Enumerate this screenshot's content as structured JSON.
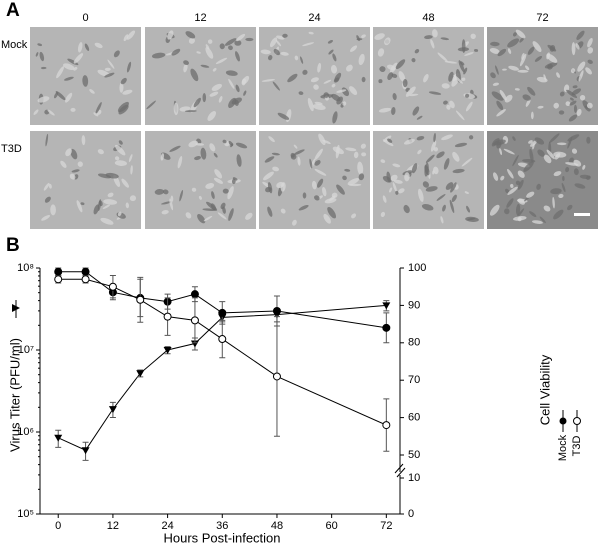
{
  "panel_a": {
    "label": "A",
    "columns": [
      0,
      12,
      24,
      48,
      72
    ],
    "rows": [
      "Mock",
      "T3D"
    ]
  },
  "chart_data": {
    "type": "line",
    "panel_label": "B",
    "x_label": "Hours Post-infection",
    "y_label": "Virus Titer (PFU/ml)",
    "y2_label": "Cell Viability",
    "x": [
      0,
      6,
      12,
      18,
      24,
      30,
      36,
      48,
      72
    ],
    "xlim": [
      -4,
      75
    ],
    "xticks": [
      0,
      12,
      24,
      36,
      48,
      60,
      72
    ],
    "ylim": [
      100000,
      100000000
    ],
    "log_y": true,
    "yticks": [
      {
        "value": 100000,
        "label": "10⁵"
      },
      {
        "value": 1000000,
        "label": "10⁶"
      },
      {
        "value": 10000000,
        "label": "10⁷"
      },
      {
        "value": 100000000,
        "label": "10⁸"
      }
    ],
    "y2lim": [
      0,
      100
    ],
    "y2ticks": [
      0,
      10,
      50,
      60,
      70,
      80,
      90,
      100
    ],
    "y2_break": [
      10,
      50
    ],
    "series": [
      {
        "marker": "triangle",
        "color": "#000000",
        "values": [
          850000,
          600000,
          1900000,
          5200000,
          10000000,
          12000000,
          25000000,
          27000000,
          35000000
        ],
        "errors": [
          200000,
          150000,
          400000,
          500000,
          1000000,
          2000000,
          3000000,
          5000000,
          5000000
        ]
      },
      {
        "name": "Mock",
        "axis": "y2",
        "marker": "filled-circle",
        "color": "#000000",
        "values": [
          99,
          99,
          93.5,
          92,
          91,
          93,
          88,
          88.5,
          84
        ],
        "errors": [
          1,
          1,
          2,
          5,
          2,
          2,
          3,
          4,
          4
        ]
      },
      {
        "name": "T3D",
        "axis": "y2",
        "marker": "open-circle",
        "color": "#000000",
        "values": [
          97,
          97,
          95,
          91.5,
          87,
          86,
          81,
          71,
          58
        ],
        "errors": [
          1,
          1,
          3,
          6,
          5,
          6,
          5,
          16,
          7
        ]
      }
    ]
  }
}
